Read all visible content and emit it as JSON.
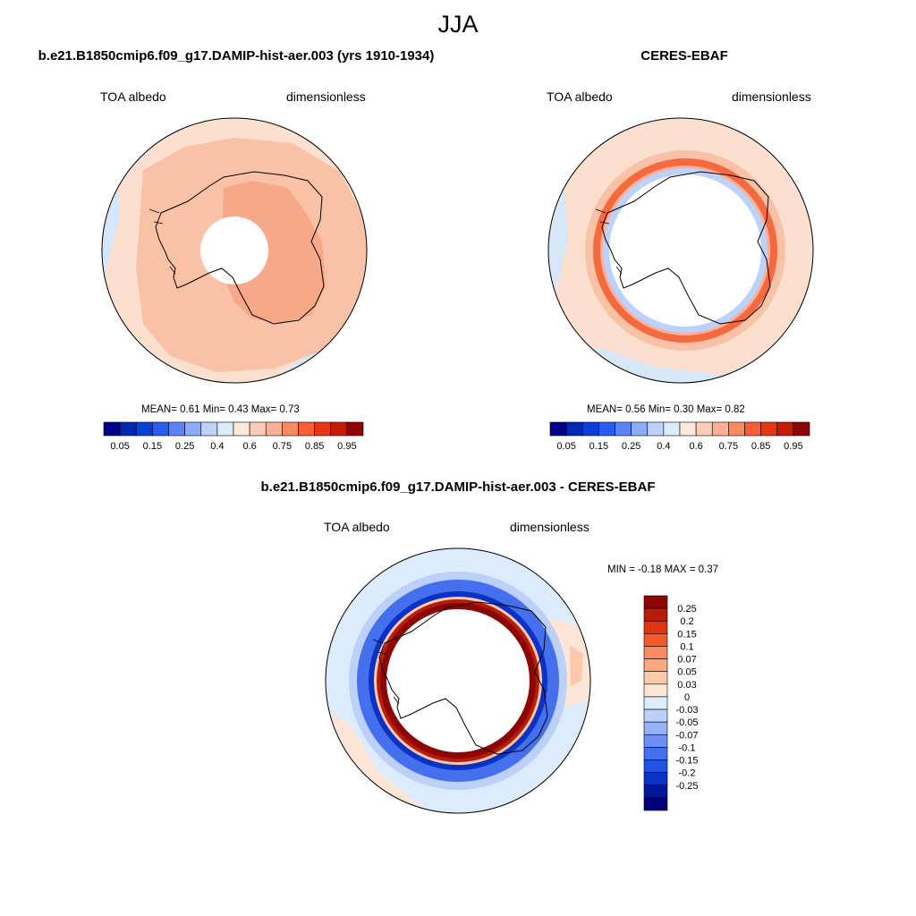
{
  "title": "JJA",
  "colors": {
    "ocean_high": "#fbe0d0",
    "ocean_low": "#d6e8f8",
    "antarctica_fill": "#f9c1a6",
    "antarctica_dark": "#f6a888",
    "hole": "#ffffff",
    "coast": "#000000"
  },
  "panels": {
    "model": {
      "title": "b.e21.B1850cmip6.f09_g17.DAMIP-hist-aer.003 (yrs 1910-1934)",
      "left_label": "TOA albedo",
      "right_label": "dimensionless",
      "stats_text": "MEAN=   0.61  Min=    0.43  Max=    0.73"
    },
    "obs": {
      "title": "CERES-EBAF",
      "left_label": "TOA albedo",
      "right_label": "dimensionless",
      "stats_text": "MEAN=   0.56  Min=    0.30  Max=    0.82"
    },
    "diff": {
      "title": "b.e21.B1850cmip6.f09_g17.DAMIP-hist-aer.003 - CERES-EBAF",
      "left_label": "TOA albedo",
      "right_label": "dimensionless",
      "stats_text": "MIN =  -0.18 MAX =   0.37"
    }
  },
  "colorbar_main": {
    "colors": [
      "#00008a",
      "#0028b4",
      "#0a3ed8",
      "#2a5cf0",
      "#5a84f5",
      "#8cacf8",
      "#bcd2fa",
      "#dcecfd",
      "#fde8dc",
      "#fbcdb8",
      "#fab096",
      "#f88a68",
      "#f55e36",
      "#e63612",
      "#c21c06",
      "#8c0606"
    ],
    "labels": [
      "0.05",
      "0.15",
      "0.25",
      "0.4",
      "0.6",
      "0.75",
      "0.85",
      "0.95"
    ]
  },
  "colorbar_diff": {
    "colors": [
      "#8c0606",
      "#b71c0a",
      "#e0350c",
      "#f55a2a",
      "#f88a64",
      "#faa880",
      "#fcc8aa",
      "#fde6d8",
      "#dcecfd",
      "#bcd0fa",
      "#96b2f7",
      "#6c90f3",
      "#4470ee",
      "#2252e2",
      "#0a32c4",
      "#001898",
      "#00007a"
    ],
    "labels": [
      "0.25",
      "0.2",
      "0.15",
      "0.1",
      "0.07",
      "0.05",
      "0.03",
      "0",
      "-0.03",
      "-0.05",
      "-0.07",
      "-0.1",
      "-0.15",
      "-0.2",
      "-0.25"
    ]
  }
}
